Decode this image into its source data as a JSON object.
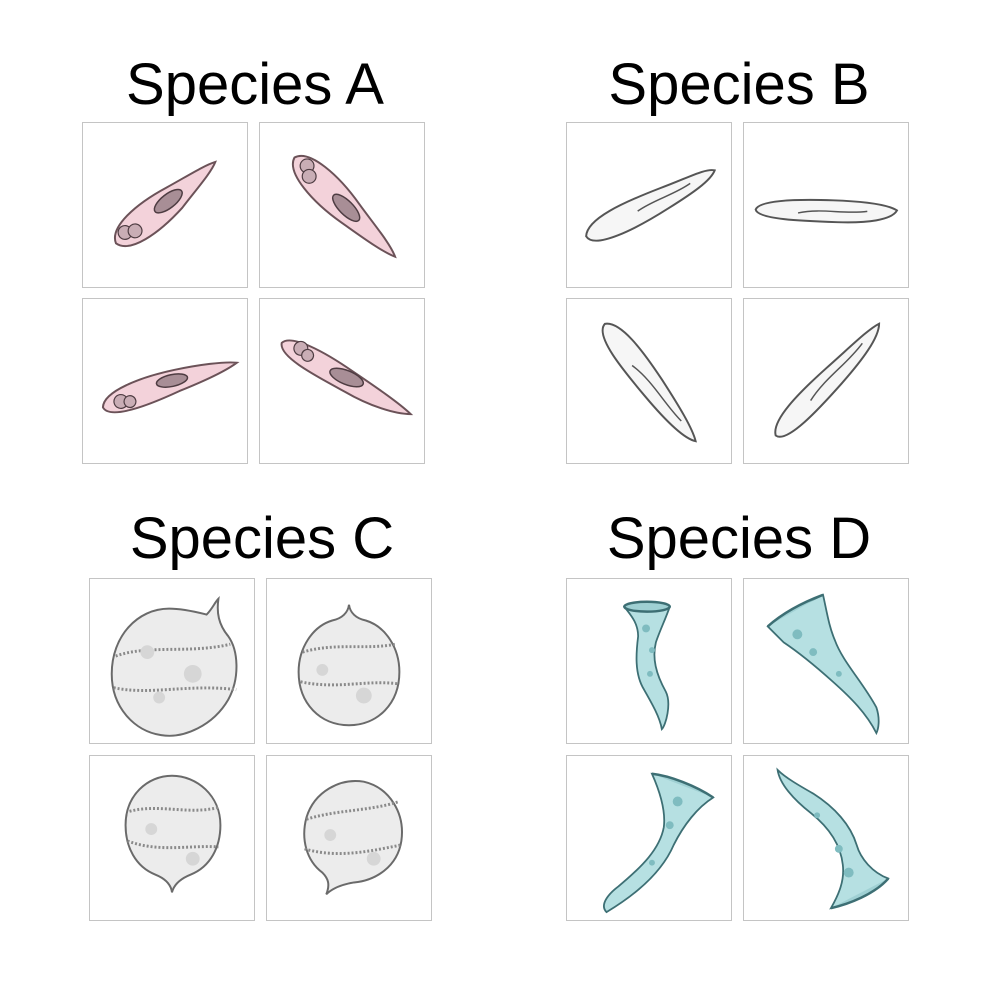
{
  "groups": [
    {
      "title": "Species A",
      "species": "a"
    },
    {
      "title": "Species B",
      "species": "b"
    },
    {
      "title": "Species C",
      "species": "c"
    },
    {
      "title": "Species D",
      "species": "d"
    }
  ],
  "colors": {
    "species_a_fill": "#f3d2da",
    "species_a_stroke": "#6b5258",
    "species_b_fill": "#f6f6f6",
    "species_b_stroke": "#555555",
    "species_c_fill": "#ececec",
    "species_c_stroke": "#6a6a6a",
    "species_d_fill": "#b6e0e2",
    "species_d_stroke": "#3d6f74",
    "panel_border": "#c4c4c4"
  },
  "icons": [
    "cell-illustration"
  ]
}
